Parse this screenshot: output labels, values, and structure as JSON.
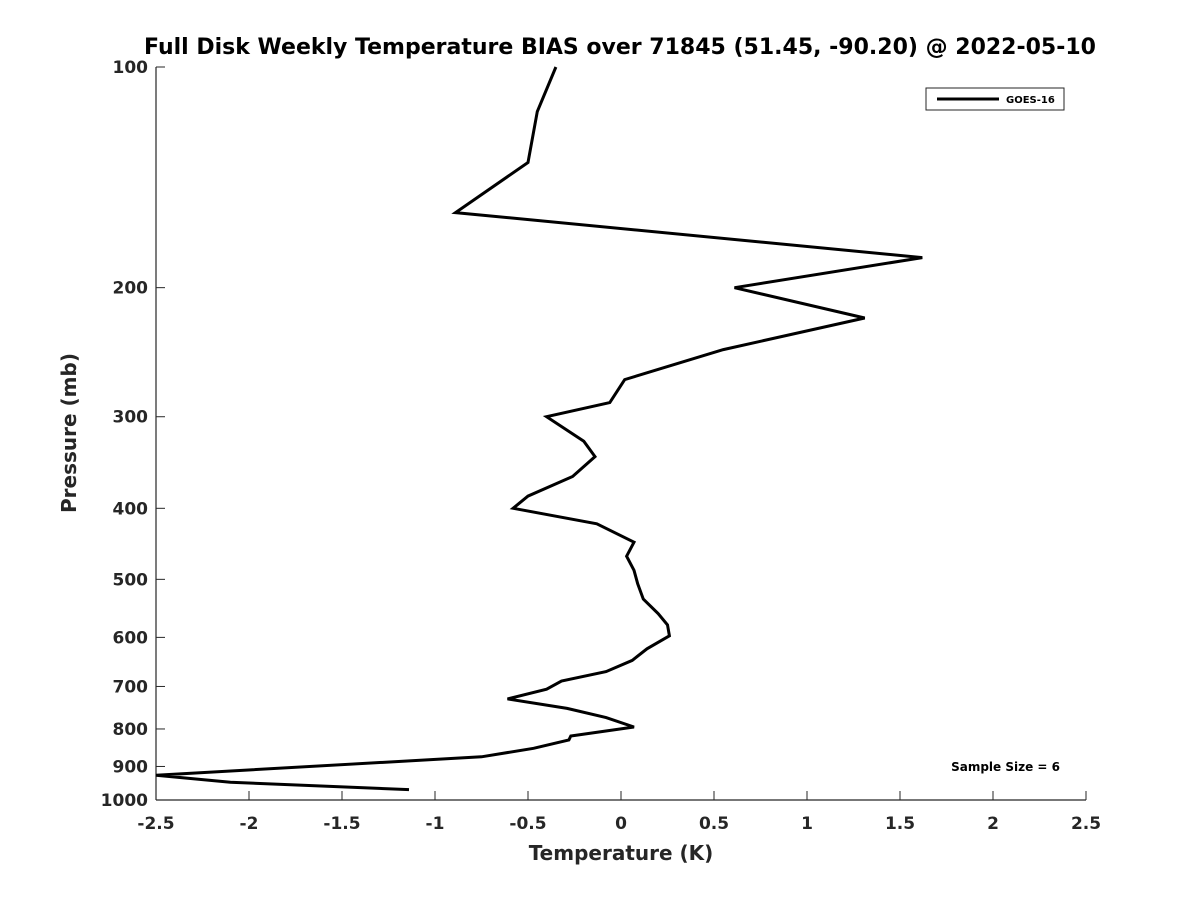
{
  "chart_data": {
    "type": "line",
    "title": "Full Disk Weekly Temperature BIAS over 71845 (51.45, -90.20) @ 2022-05-10",
    "xlabel": "Temperature (K)",
    "ylabel": "Pressure (mb)",
    "xlim": [
      -2.5,
      2.5
    ],
    "ylim": [
      100,
      1000
    ],
    "y_scale": "log",
    "y_reversed": true,
    "grid": false,
    "legend_position": "top-right",
    "x_ticks": [
      -2.5,
      -2,
      -1.5,
      -1,
      -0.5,
      0,
      0.5,
      1,
      1.5,
      2,
      2.5
    ],
    "x_tick_labels": [
      "-2.5",
      "-2",
      "-1.5",
      "-1",
      "-0.5",
      "0",
      "0.5",
      "1",
      "1.5",
      "2",
      "2.5"
    ],
    "y_ticks": [
      100,
      200,
      300,
      400,
      500,
      600,
      700,
      800,
      900,
      1000
    ],
    "y_tick_labels": [
      "100",
      "200",
      "300",
      "400",
      "500",
      "600",
      "700",
      "800",
      "900",
      "1000"
    ],
    "series": [
      {
        "name": "GOES-16",
        "color": "#000000",
        "points": [
          {
            "x": -0.35,
            "y": 100
          },
          {
            "x": -0.45,
            "y": 115
          },
          {
            "x": -0.5,
            "y": 135
          },
          {
            "x": -0.89,
            "y": 158
          },
          {
            "x": 1.62,
            "y": 182
          },
          {
            "x": 0.61,
            "y": 200
          },
          {
            "x": 1.31,
            "y": 220
          },
          {
            "x": 0.55,
            "y": 243
          },
          {
            "x": 0.02,
            "y": 267
          },
          {
            "x": -0.06,
            "y": 287
          },
          {
            "x": -0.4,
            "y": 300
          },
          {
            "x": -0.2,
            "y": 324
          },
          {
            "x": -0.14,
            "y": 340
          },
          {
            "x": -0.26,
            "y": 362
          },
          {
            "x": -0.5,
            "y": 385
          },
          {
            "x": -0.58,
            "y": 400
          },
          {
            "x": -0.13,
            "y": 420
          },
          {
            "x": 0.07,
            "y": 445
          },
          {
            "x": 0.03,
            "y": 465
          },
          {
            "x": 0.07,
            "y": 486
          },
          {
            "x": 0.09,
            "y": 507
          },
          {
            "x": 0.12,
            "y": 532
          },
          {
            "x": 0.2,
            "y": 557
          },
          {
            "x": 0.25,
            "y": 577
          },
          {
            "x": 0.26,
            "y": 597
          },
          {
            "x": 0.14,
            "y": 622
          },
          {
            "x": 0.06,
            "y": 645
          },
          {
            "x": -0.08,
            "y": 668
          },
          {
            "x": -0.32,
            "y": 688
          },
          {
            "x": -0.4,
            "y": 706
          },
          {
            "x": -0.61,
            "y": 728
          },
          {
            "x": -0.29,
            "y": 750
          },
          {
            "x": -0.08,
            "y": 772
          },
          {
            "x": 0.07,
            "y": 795
          },
          {
            "x": -0.27,
            "y": 818
          },
          {
            "x": -0.28,
            "y": 828
          },
          {
            "x": -0.47,
            "y": 850
          },
          {
            "x": -0.75,
            "y": 873
          },
          {
            "x": -2.5,
            "y": 925
          },
          {
            "x": -2.1,
            "y": 946
          },
          {
            "x": -1.14,
            "y": 968
          }
        ]
      }
    ],
    "annotation": "Sample Size = 6"
  }
}
